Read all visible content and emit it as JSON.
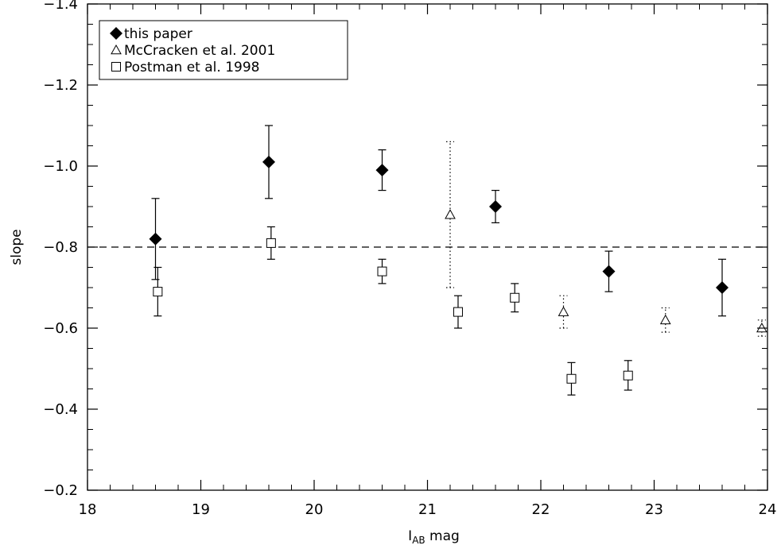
{
  "chart_data": {
    "type": "scatter",
    "title": "",
    "xlabel_main": "I",
    "xlabel_sub": "AB",
    "xlabel_tail": " mag",
    "ylabel": "slope",
    "xlim": [
      18,
      24
    ],
    "ylim": [
      -1.4,
      -0.2
    ],
    "y_inverted": true,
    "x_ticks": [
      18,
      19,
      20,
      21,
      22,
      23,
      24
    ],
    "x_tick_labels": [
      "18",
      "19",
      "20",
      "21",
      "22",
      "23",
      "24"
    ],
    "y_ticks": [
      -1.4,
      -1.2,
      -1.0,
      -0.8,
      -0.6,
      -0.4,
      -0.2
    ],
    "y_tick_labels": [
      "−1.4",
      "−1.2",
      "−1.0",
      "−0.8",
      "−0.6",
      "−0.4",
      "−0.2"
    ],
    "grid": false,
    "legend_position": "top-left",
    "reference_line": {
      "y": -0.8,
      "style": "dashed"
    },
    "series": [
      {
        "name": "this paper",
        "marker": "filled-diamond",
        "errorbar_style": "solid",
        "points": [
          {
            "x": 18.6,
            "y": -0.82,
            "err_lo": -0.72,
            "err_hi": -0.92
          },
          {
            "x": 19.6,
            "y": -1.01,
            "err_lo": -0.92,
            "err_hi": -1.1
          },
          {
            "x": 20.6,
            "y": -0.99,
            "err_lo": -0.94,
            "err_hi": -1.04
          },
          {
            "x": 21.6,
            "y": -0.9,
            "err_lo": -0.86,
            "err_hi": -0.94
          },
          {
            "x": 22.6,
            "y": -0.74,
            "err_lo": -0.69,
            "err_hi": -0.79
          },
          {
            "x": 23.6,
            "y": -0.7,
            "err_lo": -0.63,
            "err_hi": -0.77
          }
        ]
      },
      {
        "name": "McCracken et al. 2001",
        "marker": "open-triangle",
        "errorbar_style": "dotted",
        "points": [
          {
            "x": 21.2,
            "y": -0.88,
            "err_lo": -0.7,
            "err_hi": -1.06
          },
          {
            "x": 22.2,
            "y": -0.64,
            "err_lo": -0.6,
            "err_hi": -0.68
          },
          {
            "x": 23.1,
            "y": -0.62,
            "err_lo": -0.59,
            "err_hi": -0.65
          },
          {
            "x": 23.95,
            "y": -0.6,
            "err_lo": -0.58,
            "err_hi": -0.62
          }
        ]
      },
      {
        "name": "Postman et al. 1998",
        "marker": "open-square",
        "errorbar_style": "solid",
        "points": [
          {
            "x": 18.62,
            "y": -0.69,
            "err_lo": -0.63,
            "err_hi": -0.75
          },
          {
            "x": 19.62,
            "y": -0.81,
            "err_lo": -0.77,
            "err_hi": -0.85
          },
          {
            "x": 20.6,
            "y": -0.74,
            "err_lo": -0.71,
            "err_hi": -0.77
          },
          {
            "x": 21.27,
            "y": -0.64,
            "err_lo": -0.6,
            "err_hi": -0.68
          },
          {
            "x": 21.77,
            "y": -0.675,
            "err_lo": -0.64,
            "err_hi": -0.71
          },
          {
            "x": 22.27,
            "y": -0.475,
            "err_lo": -0.435,
            "err_hi": -0.515
          },
          {
            "x": 22.77,
            "y": -0.483,
            "err_lo": -0.447,
            "err_hi": -0.52
          }
        ]
      }
    ]
  }
}
